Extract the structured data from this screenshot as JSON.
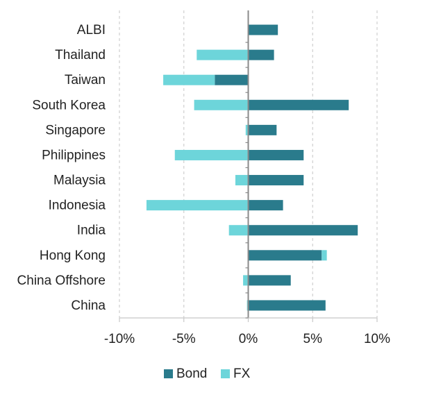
{
  "chart_data": {
    "type": "bar",
    "orientation": "horizontal",
    "stacked": true,
    "categories": [
      "ALBI",
      "Thailand",
      "Taiwan",
      "South Korea",
      "Singapore",
      "Philippines",
      "Malaysia",
      "Indonesia",
      "India",
      "Hong Kong",
      "China Offshore",
      "China"
    ],
    "series": [
      {
        "name": "Bond",
        "color": "#2a7b8c",
        "values": [
          2.3,
          2.0,
          -2.6,
          7.8,
          2.2,
          4.3,
          4.3,
          2.7,
          8.5,
          5.7,
          3.3,
          6.0
        ]
      },
      {
        "name": "FX",
        "color": "#6dd5da",
        "values": [
          0.0,
          -4.0,
          -4.0,
          -4.2,
          -0.2,
          -5.7,
          -1.0,
          -7.9,
          -1.5,
          0.4,
          -0.4,
          -0.1
        ]
      }
    ],
    "xlim": [
      -10,
      10
    ],
    "xticks": [
      -10,
      -5,
      0,
      5,
      10
    ],
    "xtick_labels": [
      "-10%",
      "-5%",
      "0%",
      "5%",
      "10%"
    ],
    "grid": "vertical dashed",
    "legend_position": "bottom",
    "title": "",
    "xlabel": "",
    "ylabel": ""
  }
}
